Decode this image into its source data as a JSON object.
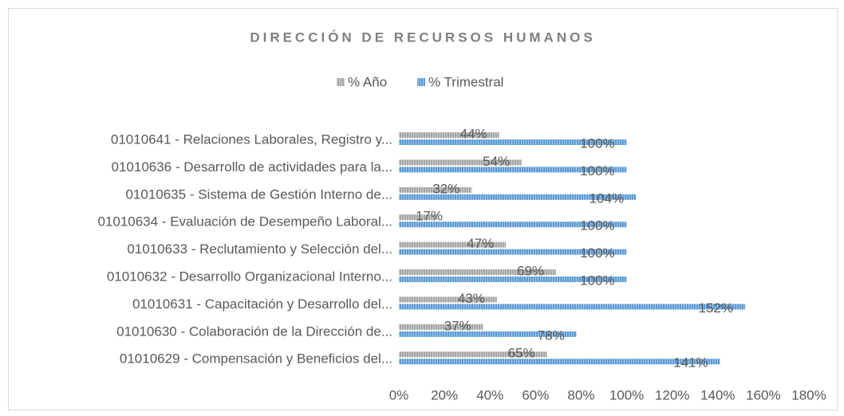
{
  "chart_data": {
    "type": "bar",
    "orientation": "horizontal",
    "title": "DIRECCIÓN DE RECURSOS HUMANOS",
    "categories": [
      "01010641 - Relaciones Laborales, Registro y...",
      "01010636 - Desarrollo de actividades para la...",
      "01010635 - Sistema de Gestión Interno de...",
      "01010634 - Evaluación de Desempeño Laboral...",
      "01010633 - Reclutamiento y Selección del...",
      "01010632 - Desarrollo Organizacional Interno...",
      "01010631 - Capacitación y Desarrollo del...",
      "01010630 - Colaboración de la Dirección de...",
      "01010629 - Compensación y Beneficios del..."
    ],
    "series": [
      {
        "name": "% Año",
        "color": "#a5a5a5",
        "values": [
          44,
          54,
          32,
          17,
          47,
          69,
          43,
          37,
          65
        ],
        "value_labels": [
          "44%",
          "54%",
          "32%",
          "17%",
          "47%",
          "69%",
          "43%",
          "37%",
          "65%"
        ]
      },
      {
        "name": "% Trimestral",
        "color": "#5b9bd5",
        "values": [
          100,
          100,
          104,
          100,
          100,
          100,
          152,
          78,
          141
        ],
        "value_labels": [
          "100%",
          "100%",
          "104%",
          "100%",
          "100%",
          "100%",
          "152%",
          "78%",
          "141%"
        ]
      }
    ],
    "xlim": [
      0,
      180
    ],
    "xticks": [
      {
        "value": 0,
        "label": "0%"
      },
      {
        "value": 20,
        "label": "20%"
      },
      {
        "value": 40,
        "label": "40%"
      },
      {
        "value": 60,
        "label": "60%"
      },
      {
        "value": 80,
        "label": "80%"
      },
      {
        "value": 100,
        "label": "100%"
      },
      {
        "value": 120,
        "label": "120%"
      },
      {
        "value": 140,
        "label": "140%"
      },
      {
        "value": 160,
        "label": "160%"
      },
      {
        "value": 180,
        "label": "180%"
      }
    ],
    "legend": "top"
  }
}
